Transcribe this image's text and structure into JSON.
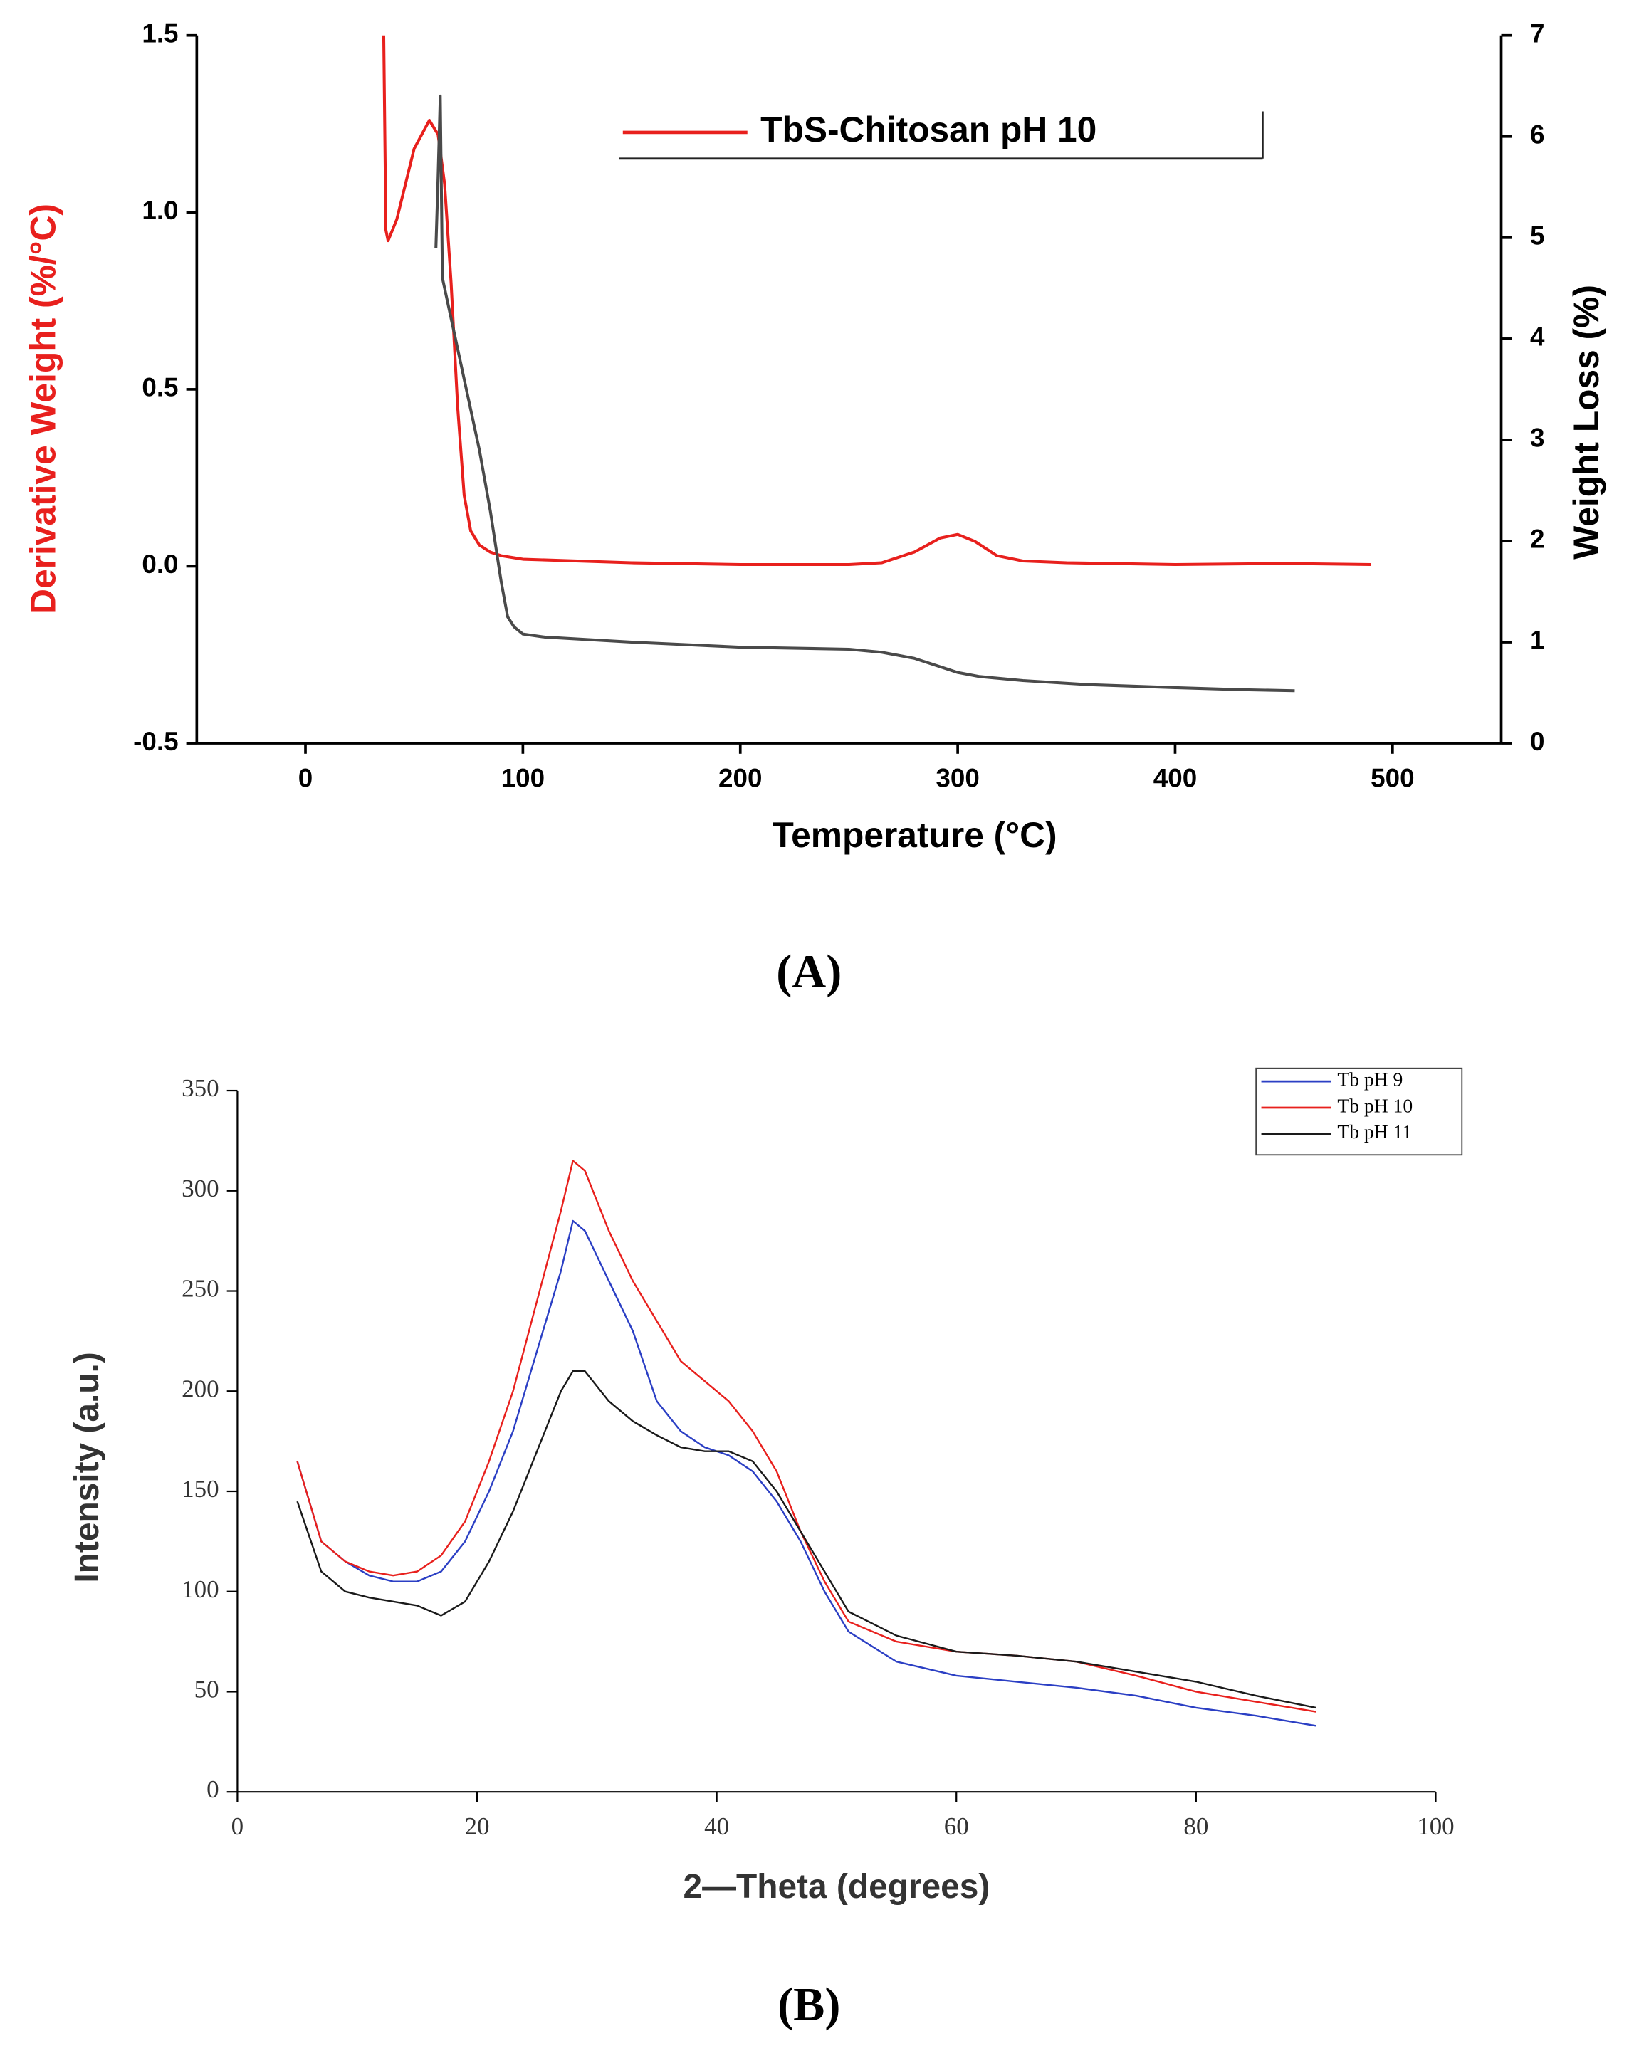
{
  "chart_data": [
    {
      "type": "line",
      "caption": "(A)",
      "xlabel": "Temperature (°C)",
      "ylabel": "Derivative Weight (%/°C)",
      "y2label": "Weight Loss (%)",
      "ylabel_color": "#e8201d",
      "xlim": [
        -50,
        550
      ],
      "xticks": [
        0,
        100,
        200,
        300,
        400,
        500
      ],
      "ylim": [
        -0.5,
        1.5
      ],
      "yticks": [
        -0.5,
        {
          "value": 0,
          "label": "0.0"
        },
        0.5,
        {
          "value": 1,
          "label": "1.0"
        },
        1.5
      ],
      "y2lim": [
        0,
        7
      ],
      "y2ticks": [
        0,
        1,
        2,
        3,
        4,
        5,
        6,
        7
      ],
      "legend": "top-right",
      "series": [
        {
          "name": "TbS-Chitosan pH 10",
          "color": "#e8201d",
          "x": [
            36,
            37,
            38,
            42,
            50,
            57,
            61,
            64,
            67,
            70,
            73,
            76,
            80,
            85,
            90,
            100,
            150,
            200,
            250,
            265,
            280,
            292,
            300,
            308,
            318,
            330,
            350,
            400,
            450,
            490
          ],
          "values": [
            1.5,
            0.95,
            0.92,
            0.98,
            1.18,
            1.26,
            1.22,
            1.08,
            0.8,
            0.45,
            0.2,
            0.1,
            0.06,
            0.04,
            0.03,
            0.02,
            0.01,
            0.005,
            0.005,
            0.01,
            0.04,
            0.08,
            0.09,
            0.07,
            0.03,
            0.015,
            0.01,
            0.005,
            0.008,
            0.005
          ]
        },
        {
          "color": "#4a4a4a",
          "axis": "y2",
          "x": [
            60,
            61,
            62,
            63,
            66,
            70,
            75,
            80,
            85,
            90,
            93,
            96,
            100,
            110,
            150,
            200,
            250,
            265,
            280,
            290,
            300,
            310,
            330,
            360,
            400,
            430,
            455
          ],
          "values": [
            4.9,
            5.6,
            6.4,
            4.6,
            4.3,
            3.9,
            3.4,
            2.9,
            2.3,
            1.6,
            1.25,
            1.15,
            1.08,
            1.05,
            1.0,
            0.95,
            0.93,
            0.9,
            0.84,
            0.77,
            0.7,
            0.66,
            0.62,
            0.58,
            0.55,
            0.53,
            0.52
          ]
        }
      ]
    },
    {
      "type": "line",
      "caption": "(B)",
      "xlabel": "2—Theta (degrees)",
      "ylabel": "Intensity (a.u.)",
      "xlim": [
        0,
        100
      ],
      "xticks": [
        0,
        20,
        40,
        60,
        80,
        100
      ],
      "ylim": [
        0,
        350
      ],
      "yticks": [
        0,
        50,
        100,
        150,
        200,
        250,
        300,
        350
      ],
      "legend": "top-right",
      "x": [
        5,
        7,
        9,
        11,
        13,
        15,
        17,
        19,
        21,
        23,
        25,
        27,
        28,
        29,
        31,
        33,
        35,
        37,
        39,
        41,
        43,
        45,
        47,
        49,
        51,
        55,
        60,
        65,
        70,
        75,
        80,
        85,
        90
      ],
      "series": [
        {
          "name": "Tb pH 9",
          "color": "#2b3fc4",
          "values": [
            165,
            125,
            115,
            108,
            105,
            105,
            110,
            125,
            150,
            180,
            220,
            260,
            285,
            280,
            255,
            230,
            195,
            180,
            172,
            168,
            160,
            145,
            125,
            100,
            80,
            65,
            58,
            55,
            52,
            48,
            42,
            38,
            33
          ]
        },
        {
          "name": "Tb pH 10",
          "color": "#e8201d",
          "values": [
            165,
            125,
            115,
            110,
            108,
            110,
            118,
            135,
            165,
            200,
            245,
            290,
            315,
            310,
            280,
            255,
            235,
            215,
            205,
            195,
            180,
            160,
            130,
            105,
            85,
            75,
            70,
            68,
            65,
            58,
            50,
            45,
            40
          ]
        },
        {
          "name": "Tb pH 11",
          "color": "#1a1a1a",
          "values": [
            145,
            110,
            100,
            97,
            95,
            93,
            88,
            95,
            115,
            140,
            170,
            200,
            210,
            210,
            195,
            185,
            178,
            172,
            170,
            170,
            165,
            150,
            130,
            110,
            90,
            78,
            70,
            68,
            65,
            60,
            55,
            48,
            42
          ]
        }
      ]
    }
  ]
}
